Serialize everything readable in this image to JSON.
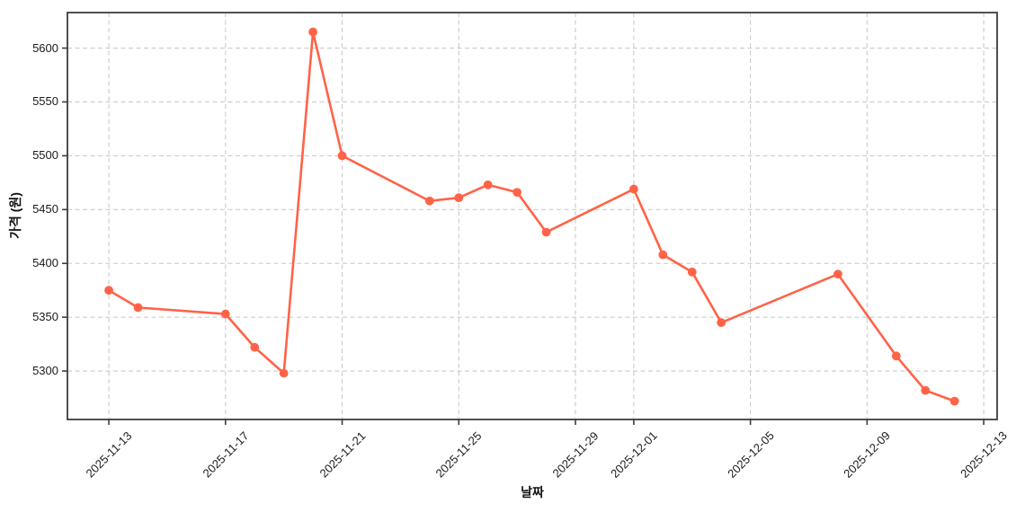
{
  "chart_data": {
    "type": "line",
    "title": "",
    "xlabel": "날짜",
    "ylabel": "가격 (원)",
    "legend_position": "none",
    "grid": true,
    "grid_style": "dashed",
    "grid_color": "#cbcbcb",
    "axis_color": "#3d3d3d",
    "line_color": "#ff6347",
    "marker": "circle",
    "marker_color": "#ff6347",
    "series": [
      {
        "name": "price",
        "dates": [
          "2025-11-13",
          "2025-11-14",
          "2025-11-17",
          "2025-11-18",
          "2025-11-19",
          "2025-11-20",
          "2025-11-21",
          "2025-11-24",
          "2025-11-25",
          "2025-11-26",
          "2025-11-27",
          "2025-11-28",
          "2025-12-01",
          "2025-12-02",
          "2025-12-03",
          "2025-12-04",
          "2025-12-08",
          "2025-12-10",
          "2025-12-11",
          "2025-12-12"
        ],
        "values": [
          5375,
          5359,
          5353,
          5322,
          5298,
          5615,
          5500,
          5458,
          5461,
          5473,
          5466,
          5429,
          5469,
          5408,
          5392,
          5345,
          5390,
          5314,
          5282,
          5272
        ]
      }
    ],
    "x_tick_labels": [
      "2025-11-13",
      "2025-11-17",
      "2025-11-21",
      "2025-11-25",
      "2025-11-29",
      "2025-12-01",
      "2025-12-05",
      "2025-12-09",
      "2025-12-13"
    ],
    "y_tick_labels": [
      5300,
      5350,
      5400,
      5450,
      5500,
      5550,
      5600
    ],
    "x_origin": "2025-11-13",
    "xlim_offset_days": [
      -1.42,
      30.46
    ],
    "ylim": [
      5255,
      5633
    ]
  }
}
